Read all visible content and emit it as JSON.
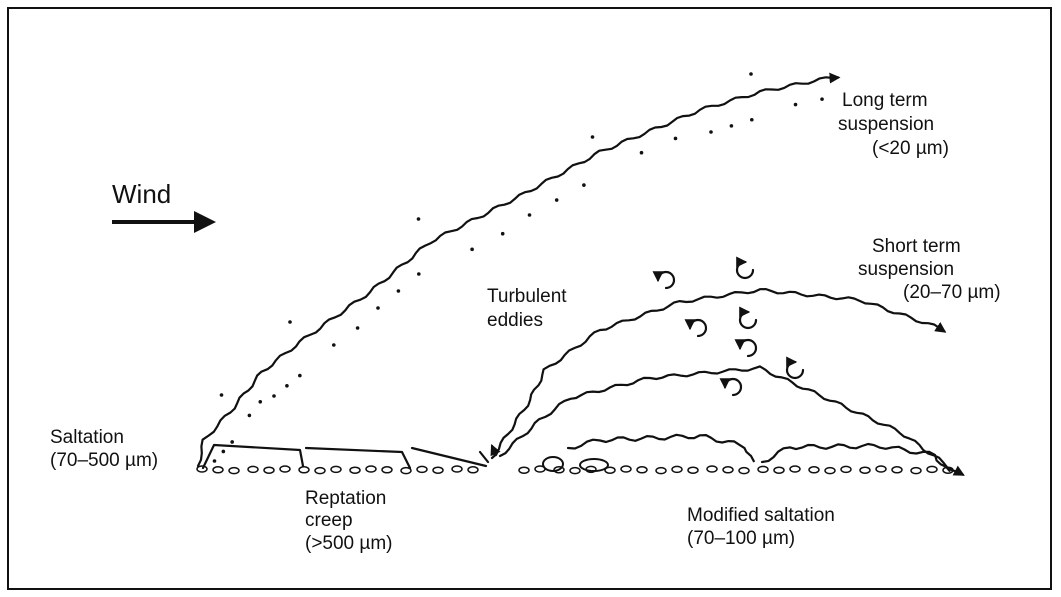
{
  "labels": {
    "wind": "Wind",
    "long_term": [
      "Long term",
      "suspension",
      "(<20 µm)"
    ],
    "short_term": [
      "Short term",
      "suspension",
      "(20–70 µm)"
    ],
    "turbulent": [
      "Turbulent",
      "eddies"
    ],
    "saltation": [
      "Saltation",
      "(70–500 µm)"
    ],
    "reptation": [
      "Reptation",
      "creep",
      "(>500 µm)"
    ],
    "modified": [
      "Modified saltation",
      "(70–100 µm)"
    ]
  }
}
